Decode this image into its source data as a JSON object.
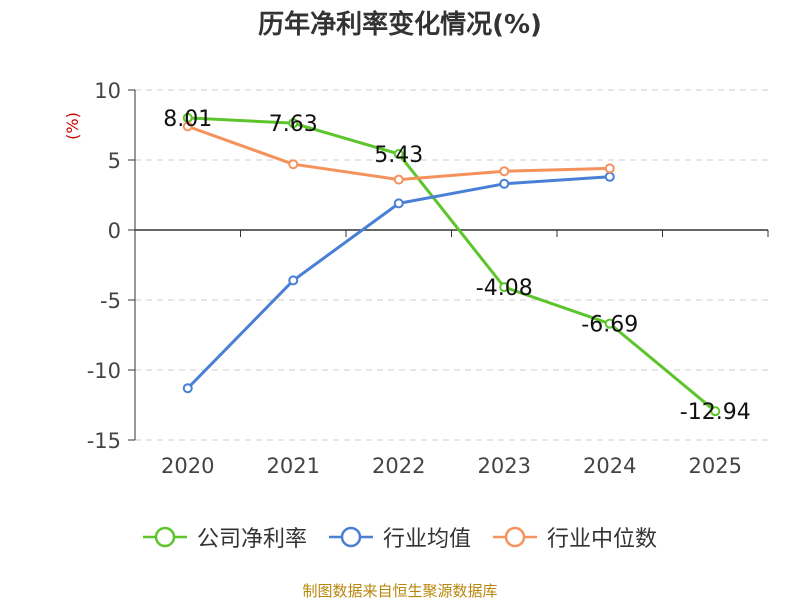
{
  "chart_data": {
    "type": "line",
    "title": "历年净利率变化情况(%)",
    "ylabel": "(%)",
    "xlabel": "",
    "categories": [
      "2020",
      "2021",
      "2022",
      "2023",
      "2024",
      "2025"
    ],
    "ylim": [
      -15,
      10
    ],
    "yticks": [
      10,
      5,
      0,
      -5,
      -10,
      -15
    ],
    "grid": true,
    "legend_position": "bottom",
    "series": [
      {
        "name": "公司净利率",
        "color": "#5cc52b",
        "values": [
          8.01,
          7.63,
          5.43,
          -4.08,
          -6.69,
          -12.94
        ],
        "labels": [
          "8.01",
          "7.63",
          "5.43",
          "-4.08",
          "-6.69",
          "-12.94"
        ]
      },
      {
        "name": "行业均值",
        "color": "#4a7fd6",
        "values": [
          -11.3,
          -3.6,
          1.9,
          3.3,
          3.8,
          null
        ]
      },
      {
        "name": "行业中位数",
        "color": "#f5925c",
        "values": [
          7.4,
          4.7,
          3.6,
          4.2,
          4.4,
          null
        ]
      }
    ]
  },
  "source_note": "制图数据来自恒生聚源数据库"
}
